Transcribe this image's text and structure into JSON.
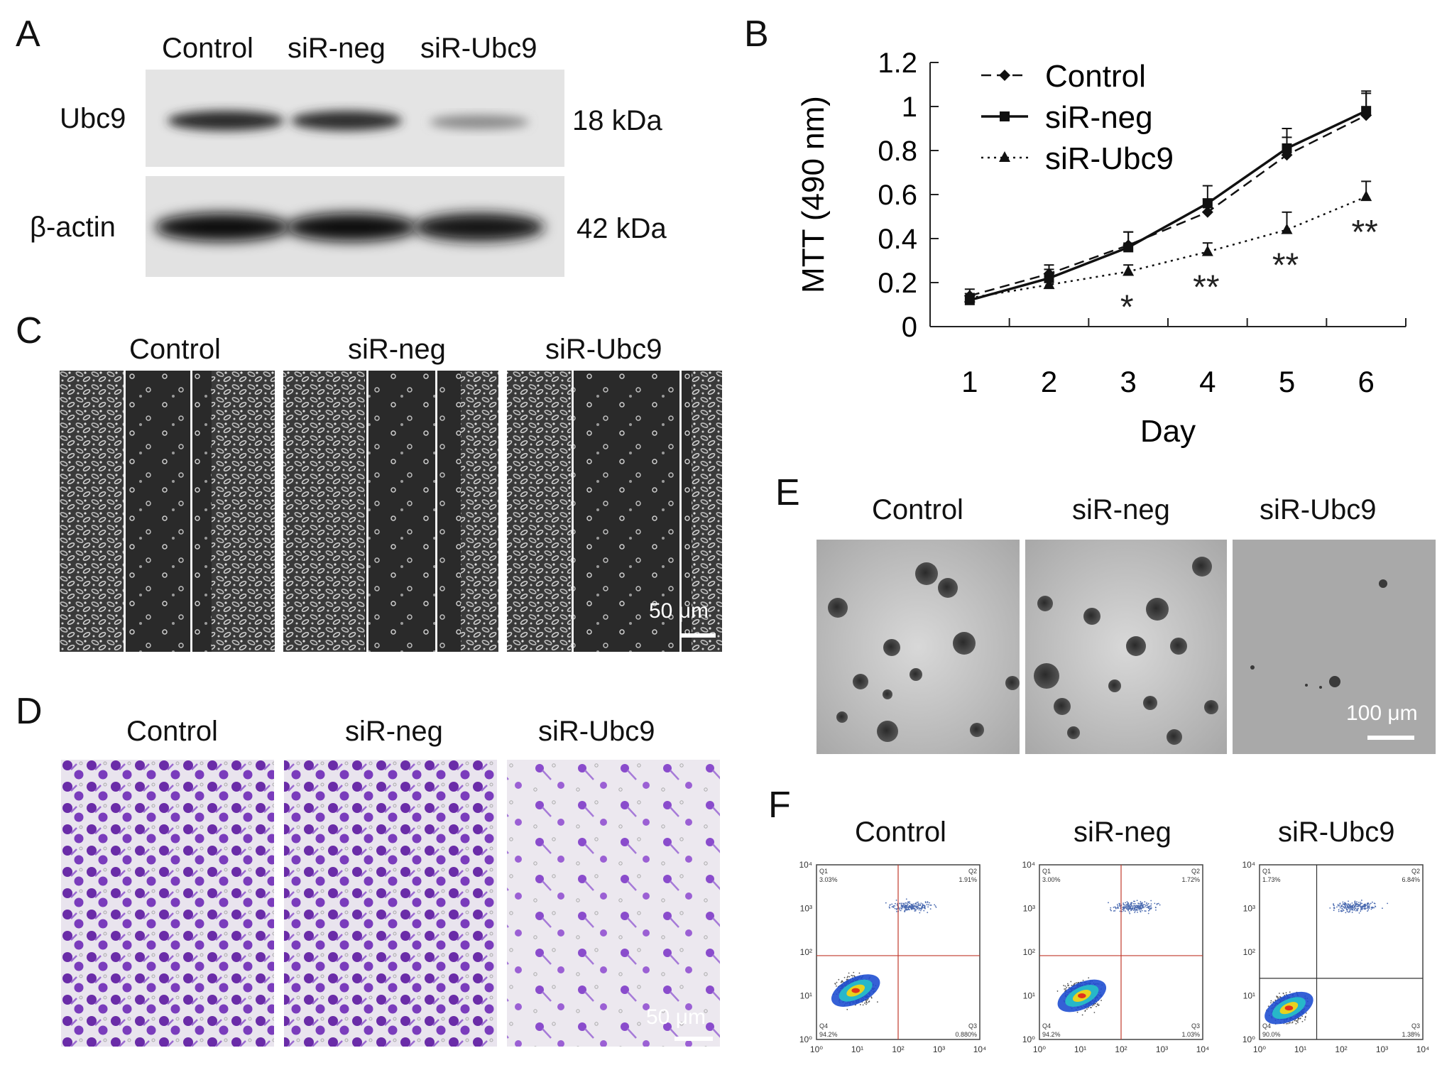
{
  "figure": {
    "panel_A": {
      "label": "A",
      "columns": [
        "Control",
        "siR-neg",
        "siR-Ubc9"
      ],
      "rows": [
        {
          "protein": "Ubc9",
          "size": "18 kDa",
          "band_intensity": [
            0.8,
            0.78,
            0.2
          ]
        },
        {
          "protein": "β-actin",
          "size": "42 kDa",
          "band_intensity": [
            0.95,
            0.95,
            0.95
          ]
        }
      ]
    },
    "panel_B": {
      "label": "B",
      "chart_data": {
        "type": "line",
        "xlabel": "Day",
        "ylabel": "MTT (490 nm)",
        "x": [
          1,
          2,
          3,
          4,
          5,
          6
        ],
        "xlim": [
          0.5,
          6.5
        ],
        "ylim": [
          0,
          1.2
        ],
        "yticks": [
          "0",
          "0.2",
          "0.4",
          "0.6",
          "0.8",
          "1",
          "1.2"
        ],
        "legend_position": "top-left",
        "series": [
          {
            "name": "Control",
            "values": [
              0.14,
              0.24,
              0.37,
              0.52,
              0.78,
              0.96
            ],
            "errors": [
              0.03,
              0.04,
              0.06,
              0.06,
              0.08,
              0.1
            ],
            "style": "dashed",
            "marker": "diamond"
          },
          {
            "name": "siR-neg",
            "values": [
              0.12,
              0.22,
              0.36,
              0.56,
              0.81,
              0.98
            ],
            "errors": [
              0.03,
              0.04,
              0.07,
              0.08,
              0.09,
              0.09
            ],
            "style": "solid",
            "marker": "square"
          },
          {
            "name": "siR-Ubc9",
            "values": [
              0.13,
              0.19,
              0.25,
              0.34,
              0.44,
              0.59
            ],
            "errors": [
              0.02,
              0.04,
              0.03,
              0.04,
              0.08,
              0.07
            ],
            "style": "dotted",
            "marker": "triangle"
          }
        ],
        "annotations": [
          {
            "x": 3,
            "text": "*"
          },
          {
            "x": 4,
            "text": "**"
          },
          {
            "x": 5,
            "text": "**"
          },
          {
            "x": 6,
            "text": "**"
          }
        ]
      }
    },
    "panel_C": {
      "label": "C",
      "columns": [
        "Control",
        "siR-neg",
        "siR-Ubc9"
      ],
      "scale": "50 μm"
    },
    "panel_D": {
      "label": "D",
      "columns": [
        "Control",
        "siR-neg",
        "siR-Ubc9"
      ],
      "scale": "50 μm"
    },
    "panel_E": {
      "label": "E",
      "columns": [
        "Control",
        "siR-neg",
        "siR-Ubc9"
      ],
      "scale": "100 μm"
    },
    "panel_F": {
      "label": "F",
      "columns": [
        "Control",
        "siR-neg",
        "siR-Ubc9"
      ],
      "plots": [
        {
          "q1": "Q1",
          "q1v": "3.03%",
          "q2": "Q2",
          "q2v": "1.91%",
          "q3": "Q3",
          "q3v": "0.880%",
          "q4": "Q4",
          "q4v": "94.2%"
        },
        {
          "q1": "Q1",
          "q1v": "3.00%",
          "q2": "Q2",
          "q2v": "1.72%",
          "q3": "Q3",
          "q3v": "1.03%",
          "q4": "Q4",
          "q4v": "94.2%"
        },
        {
          "q1": "Q1",
          "q1v": "1.73%",
          "q2": "Q2",
          "q2v": "6.84%",
          "q3": "Q3",
          "q3v": "1.38%",
          "q4": "Q4",
          "q4v": "90.0%"
        }
      ],
      "axis_ticks": [
        "10⁰",
        "10¹",
        "10²",
        "10³",
        "10⁴"
      ]
    }
  }
}
